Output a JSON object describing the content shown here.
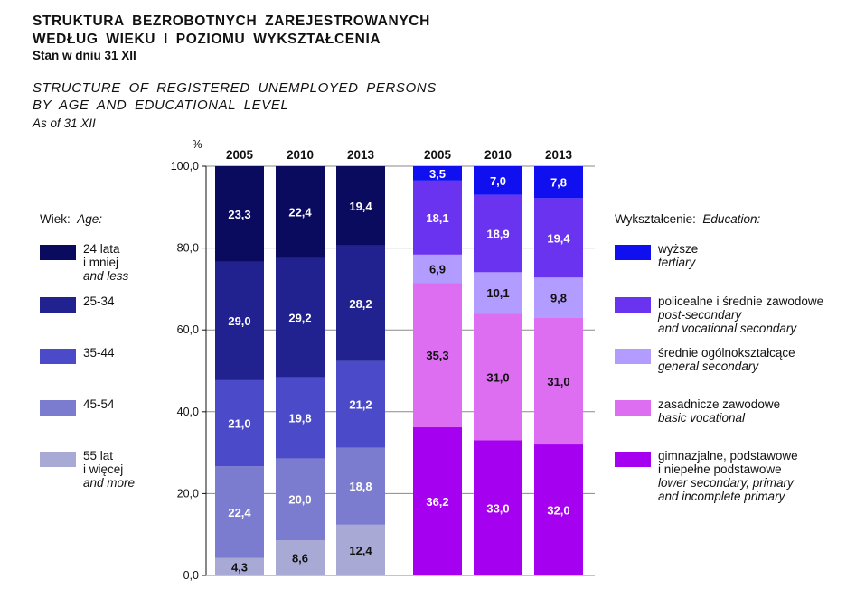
{
  "title": {
    "pl_line1": "STRUKTURA BEZROBOTNYCH ZAREJESTROWANYCH",
    "pl_line2": "WEDŁUG WIEKU I POZIOMU WYKSZTAŁCENIA",
    "pl_sub": "Stan w dniu 31 XII",
    "en_line1": "STRUCTURE OF REGISTERED UNEMPLOYED PERSONS",
    "en_line2": "BY AGE AND EDUCATIONAL LEVEL",
    "en_sub": "As of 31 XII"
  },
  "legend_age": {
    "heading_pl": "Wiek:",
    "heading_en": "Age:",
    "items": [
      {
        "pl": "24 lata",
        "pl2": "i mniej",
        "en": "and less",
        "color": "#0a0a5e"
      },
      {
        "pl": "25-34",
        "pl2": "",
        "en": "",
        "color": "#21218f"
      },
      {
        "pl": "35-44",
        "pl2": "",
        "en": "",
        "color": "#4b4bc9"
      },
      {
        "pl": "45-54",
        "pl2": "",
        "en": "",
        "color": "#7b7bcf"
      },
      {
        "pl": "55 lat",
        "pl2": "i więcej",
        "en": "and more",
        "color": "#a9a9d6"
      }
    ]
  },
  "legend_edu": {
    "heading_pl": "Wykształcenie:",
    "heading_en": "Education:",
    "items": [
      {
        "pl": "wyższe",
        "en": "tertiary",
        "en2": "",
        "color": "#0f0ff0"
      },
      {
        "pl": "policealne i średnie zawodowe",
        "en": "post-secondary",
        "en2": "and vocational secondary",
        "color": "#6a33f0"
      },
      {
        "pl": "średnie ogólnokształcące",
        "en": "general secondary",
        "en2": "",
        "color": "#b29cff"
      },
      {
        "pl": "zasadnicze zawodowe",
        "en": "basic vocational",
        "en2": "",
        "color": "#dd6ef2"
      },
      {
        "pl": "gimnazjalne, podstawowe",
        "pl2": "i niepełne podstawowe",
        "en": "lower secondary, primary",
        "en2": "and incomplete primary",
        "color": "#a600f0"
      }
    ]
  },
  "chart_data": [
    {
      "type": "bar",
      "stacked": true,
      "ylabel": "%",
      "ylim": [
        0,
        100
      ],
      "yticks": [
        "0,0",
        "20,0",
        "40,0",
        "60,0",
        "80,0",
        "100,0"
      ],
      "categories": [
        "2005",
        "2010",
        "2013"
      ],
      "series": [
        {
          "name": "55 lat i więcej",
          "values": [
            4.3,
            8.6,
            12.4
          ],
          "labels": [
            "4,3",
            "8,6",
            "12,4"
          ],
          "color": "#a9a9d6",
          "label_color": "#111111"
        },
        {
          "name": "45-54",
          "values": [
            22.4,
            20.0,
            18.8
          ],
          "labels": [
            "22,4",
            "20,0",
            "18,8"
          ],
          "color": "#7b7bcf",
          "label_color": "#ffffff"
        },
        {
          "name": "35-44",
          "values": [
            21.0,
            19.8,
            21.2
          ],
          "labels": [
            "21,0",
            "19,8",
            "21,2"
          ],
          "color": "#4b4bc9",
          "label_color": "#ffffff"
        },
        {
          "name": "25-34",
          "values": [
            29.0,
            29.2,
            28.2
          ],
          "labels": [
            "29,0",
            "29,2",
            "28,2"
          ],
          "color": "#21218f",
          "label_color": "#ffffff"
        },
        {
          "name": "24 lata i mniej",
          "values": [
            23.3,
            22.4,
            19.4
          ],
          "labels": [
            "23,3",
            "22,4",
            "19,4"
          ],
          "color": "#0a0a5e",
          "label_color": "#ffffff"
        }
      ]
    },
    {
      "type": "bar",
      "stacked": true,
      "ylim": [
        0,
        100
      ],
      "categories": [
        "2005",
        "2010",
        "2013"
      ],
      "series": [
        {
          "name": "gimnazjalne, podstawowe i niepełne podstawowe",
          "values": [
            36.2,
            33.0,
            32.0
          ],
          "labels": [
            "36,2",
            "33,0",
            "32,0"
          ],
          "color": "#a600f0",
          "label_color": "#ffffff"
        },
        {
          "name": "zasadnicze zawodowe",
          "values": [
            35.3,
            31.0,
            31.0
          ],
          "labels": [
            "35,3",
            "31,0",
            "31,0"
          ],
          "color": "#dd6ef2",
          "label_color": "#111111"
        },
        {
          "name": "średnie ogólnokształcące",
          "values": [
            6.9,
            10.1,
            9.8
          ],
          "labels": [
            "6,9",
            "10,1",
            "9,8"
          ],
          "color": "#b29cff",
          "label_color": "#111111"
        },
        {
          "name": "policealne i średnie zawodowe",
          "values": [
            18.1,
            18.9,
            19.4
          ],
          "labels": [
            "18,1",
            "18,9",
            "19,4"
          ],
          "color": "#6a33f0",
          "label_color": "#ffffff"
        },
        {
          "name": "wyższe",
          "values": [
            3.5,
            7.0,
            7.8
          ],
          "labels": [
            "3,5",
            "7,0",
            "7,8"
          ],
          "color": "#0f0ff0",
          "label_color": "#ffffff"
        }
      ]
    }
  ]
}
